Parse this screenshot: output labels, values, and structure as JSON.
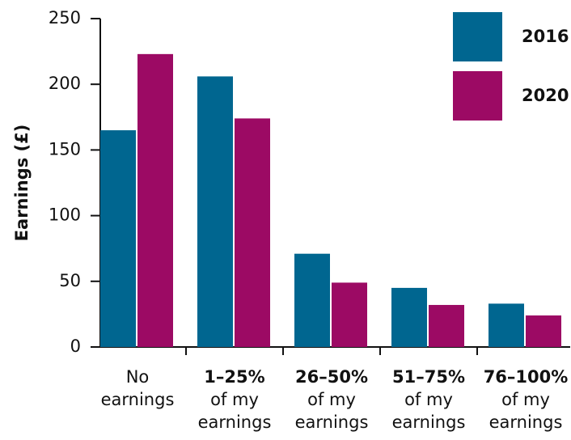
{
  "chart_data": {
    "type": "bar",
    "y_label": "Earnings (£)",
    "categories": [
      [
        "No",
        "earnings"
      ],
      [
        "1–25%",
        "of my",
        "earnings"
      ],
      [
        "26–50%",
        "of my",
        "earnings"
      ],
      [
        "51–75%",
        "of my",
        "earnings"
      ],
      [
        "76–100%",
        "of my",
        "earnings"
      ]
    ],
    "series": [
      {
        "name": "2016",
        "color": "#006690",
        "values": [
          165,
          206,
          71,
          45,
          33
        ]
      },
      {
        "name": "2020",
        "color": "#9c0a64",
        "values": [
          223,
          174,
          49,
          32,
          24
        ]
      }
    ],
    "ylim": [
      0,
      250
    ],
    "yticks": [
      0,
      50,
      100,
      150,
      200,
      250
    ],
    "grid": false,
    "legend": "top-right"
  }
}
